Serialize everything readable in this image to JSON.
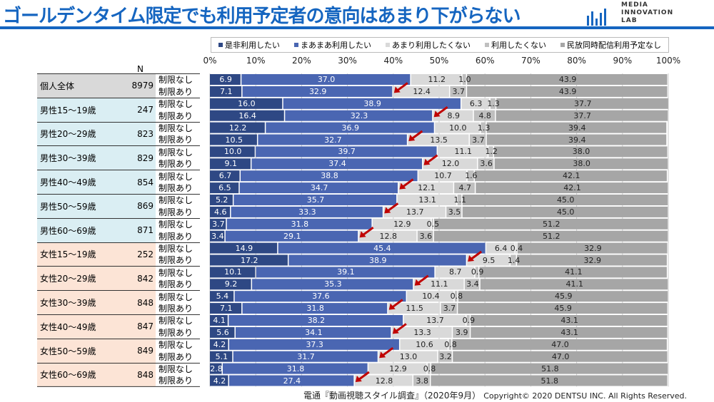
{
  "header": {
    "title": "ゴールデンタイム限定でも利用予定者の意向はあまり下がらない",
    "logo_text": [
      "MEDIA",
      "INNOVATION",
      "LAB"
    ]
  },
  "footer": {
    "source": "電通『動画視聴スタイル調査』（2020年9月）",
    "copyright": "Copyright© 2020 DENTSU INC. All Rights Reserved."
  },
  "chart_data": {
    "type": "bar",
    "orientation": "horizontal",
    "stacked": true,
    "percent": true,
    "xlim": [
      0,
      100
    ],
    "x_tick_labels": [
      "0%",
      "10%",
      "20%",
      "30%",
      "40%",
      "50%",
      "60%",
      "70%",
      "80%",
      "90%",
      "100%"
    ],
    "n_header": "N",
    "legend": {
      "position": "top",
      "entries": [
        "是非利用したい",
        "まあまあ利用したい",
        "あまり利用したくない",
        "利用したくない",
        "民放同時配信利用予定なし"
      ]
    },
    "colors": [
      "#2e4884",
      "#4a66b2",
      "#d9d9d9",
      "#bfbfbf",
      "#a6a6a6"
    ],
    "group_colors": {
      "all": "#d9d9d9",
      "male": "#daeef3",
      "female": "#fce4d6"
    },
    "conditions": [
      "制限なし",
      "制限あり"
    ],
    "highlight_arrows": "制限あり",
    "groups": [
      {
        "label": "個人全体",
        "n": "8979",
        "type": "all",
        "rows": [
          [
            6.9,
            37.0,
            11.2,
            1.0,
            43.9
          ],
          [
            7.1,
            32.9,
            12.4,
            3.7,
            43.9
          ]
        ]
      },
      {
        "label": "男性15～19歳",
        "n": "247",
        "type": "male",
        "rows": [
          [
            16.0,
            38.9,
            6.3,
            1.3,
            37.7
          ],
          [
            16.4,
            32.3,
            8.9,
            4.8,
            37.7
          ]
        ]
      },
      {
        "label": "男性20～29歳",
        "n": "823",
        "type": "male",
        "rows": [
          [
            12.2,
            36.9,
            10.0,
            1.3,
            39.4
          ],
          [
            10.5,
            32.7,
            13.5,
            3.7,
            39.4
          ]
        ]
      },
      {
        "label": "男性30～39歳",
        "n": "829",
        "type": "male",
        "rows": [
          [
            10.0,
            39.7,
            11.1,
            1.2,
            38.0
          ],
          [
            9.1,
            37.4,
            12.0,
            3.6,
            38.0
          ]
        ]
      },
      {
        "label": "男性40～49歳",
        "n": "854",
        "type": "male",
        "rows": [
          [
            6.7,
            38.8,
            10.7,
            1.6,
            42.1
          ],
          [
            6.5,
            34.7,
            12.1,
            4.7,
            42.1
          ]
        ]
      },
      {
        "label": "男性50～59歳",
        "n": "869",
        "type": "male",
        "rows": [
          [
            5.2,
            35.7,
            13.1,
            1.1,
            45.0
          ],
          [
            4.6,
            33.3,
            13.7,
            3.5,
            45.0
          ]
        ]
      },
      {
        "label": "男性60～69歳",
        "n": "871",
        "type": "male",
        "rows": [
          [
            3.7,
            31.8,
            12.9,
            0.5,
            51.2
          ],
          [
            3.4,
            29.1,
            12.8,
            3.6,
            51.2
          ]
        ]
      },
      {
        "label": "女性15～19歳",
        "n": "252",
        "type": "female",
        "rows": [
          [
            14.9,
            45.4,
            6.4,
            0.4,
            32.9
          ],
          [
            17.2,
            38.9,
            9.5,
            1.4,
            32.9
          ]
        ]
      },
      {
        "label": "女性20～29歳",
        "n": "842",
        "type": "female",
        "rows": [
          [
            10.1,
            39.1,
            8.7,
            0.9,
            41.1
          ],
          [
            9.2,
            35.3,
            11.1,
            3.4,
            41.1
          ]
        ]
      },
      {
        "label": "女性30～39歳",
        "n": "848",
        "type": "female",
        "rows": [
          [
            5.4,
            37.6,
            10.4,
            0.8,
            45.9
          ],
          [
            7.1,
            31.8,
            11.5,
            3.7,
            45.9
          ]
        ]
      },
      {
        "label": "女性40～49歳",
        "n": "847",
        "type": "female",
        "rows": [
          [
            4.1,
            38.2,
            13.7,
            0.9,
            43.1
          ],
          [
            5.6,
            34.1,
            13.3,
            3.9,
            43.1
          ]
        ]
      },
      {
        "label": "女性50～59歳",
        "n": "849",
        "type": "female",
        "rows": [
          [
            4.2,
            37.3,
            10.6,
            0.8,
            47.0
          ],
          [
            5.1,
            31.7,
            13.0,
            3.2,
            47.0
          ]
        ]
      },
      {
        "label": "女性60～69歳",
        "n": "848",
        "type": "female",
        "rows": [
          [
            2.8,
            31.8,
            12.9,
            0.8,
            51.8
          ],
          [
            4.2,
            27.4,
            12.8,
            3.8,
            51.8
          ]
        ]
      }
    ]
  }
}
